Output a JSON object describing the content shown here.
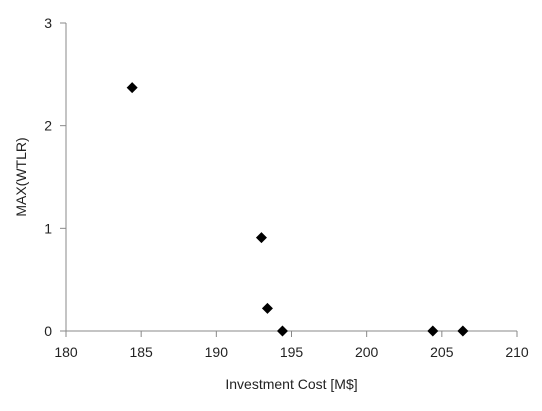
{
  "chart_data": {
    "type": "scatter",
    "title": "",
    "xlabel": "Investment Cost [M$]",
    "ylabel": "MAX(WTLR)",
    "xlim": [
      180,
      210
    ],
    "ylim": [
      0,
      3
    ],
    "x_ticks": [
      180,
      185,
      190,
      195,
      200,
      205,
      210
    ],
    "y_ticks": [
      0,
      1,
      2,
      3
    ],
    "grid": false,
    "legend": "none",
    "marker": "diamond",
    "marker_color": "#000000",
    "series": [
      {
        "x": [
          184.4,
          193.0,
          193.4,
          194.4,
          204.4,
          206.4
        ],
        "y": [
          2.37,
          0.91,
          0.22,
          0.0,
          0.0,
          0.0
        ]
      }
    ]
  }
}
